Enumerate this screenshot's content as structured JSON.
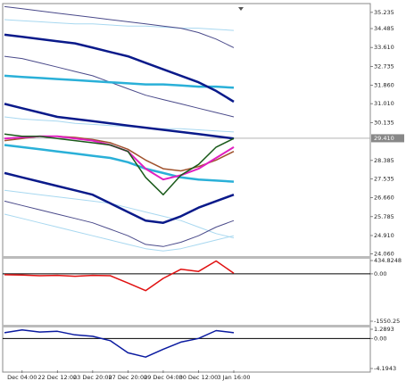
{
  "chart_data": [
    {
      "type": "line",
      "ylim": [
        24.0,
        35.6
      ],
      "yticks": [
        35.235,
        34.485,
        {
          "value": 33.61,
          "label": "33.610"
        },
        32.735,
        {
          "value": 31.86,
          "label": "31.860"
        },
        {
          "value": 31.01,
          "label": "31.010"
        },
        30.135,
        28.385,
        27.535,
        {
          "value": 26.66,
          "label": "26.660"
        },
        25.785,
        {
          "value": 24.91,
          "label": "24.910"
        },
        {
          "value": 24.06,
          "label": "24.060"
        }
      ],
      "price_line": {
        "value": 29.41,
        "label": "29.410"
      },
      "series": [
        {
          "color": "#a8d8f0",
          "width": 1,
          "values": [
            34.9,
            34.85,
            34.8,
            34.75,
            34.7,
            34.7,
            34.65,
            34.6,
            34.6,
            34.55,
            34.5,
            34.5,
            34.45,
            34.4
          ]
        },
        {
          "color": "#a8d8f0",
          "width": 1,
          "values": [
            30.4,
            30.3,
            30.25,
            30.2,
            30.1,
            30.05,
            30.0,
            29.95,
            29.9,
            29.85,
            29.85,
            29.8,
            29.75,
            29.7
          ]
        },
        {
          "color": "#a8d8f0",
          "width": 1,
          "values": [
            27.0,
            26.9,
            26.8,
            26.7,
            26.6,
            26.5,
            26.4,
            26.2,
            26.0,
            25.8,
            25.6,
            25.3,
            25.0,
            24.8
          ]
        },
        {
          "color": "#a8d8f0",
          "width": 1,
          "values": [
            25.9,
            25.7,
            25.5,
            25.3,
            25.1,
            24.9,
            24.7,
            24.5,
            24.3,
            24.2,
            24.3,
            24.5,
            24.7,
            24.9
          ]
        },
        {
          "color": "#4a4a8a",
          "width": 1,
          "values": [
            35.5,
            35.4,
            35.3,
            35.2,
            35.1,
            35.0,
            34.9,
            34.8,
            34.7,
            34.6,
            34.5,
            34.3,
            34.0,
            33.6
          ]
        },
        {
          "color": "#4a4a8a",
          "width": 1,
          "values": [
            33.2,
            33.1,
            32.9,
            32.7,
            32.5,
            32.3,
            32.0,
            31.7,
            31.4,
            31.2,
            31.0,
            30.8,
            30.6,
            30.4
          ]
        },
        {
          "color": "#4a4a8a",
          "width": 1,
          "values": [
            26.5,
            26.3,
            26.1,
            25.9,
            25.7,
            25.5,
            25.2,
            24.9,
            24.5,
            24.4,
            24.6,
            24.9,
            25.3,
            25.6
          ]
        },
        {
          "color": "#2ab0d8",
          "width": 2.5,
          "values": [
            32.3,
            32.25,
            32.2,
            32.15,
            32.1,
            32.05,
            32.0,
            31.95,
            31.9,
            31.9,
            31.85,
            31.8,
            31.8,
            31.75
          ]
        },
        {
          "color": "#2ab0d8",
          "width": 2.5,
          "values": [
            29.1,
            29.0,
            28.9,
            28.8,
            28.7,
            28.6,
            28.5,
            28.3,
            28.0,
            27.8,
            27.6,
            27.5,
            27.45,
            27.4
          ]
        },
        {
          "color": "#0a1a8a",
          "width": 2.5,
          "values": [
            34.2,
            34.1,
            34.0,
            33.9,
            33.8,
            33.6,
            33.4,
            33.2,
            32.9,
            32.6,
            32.3,
            32.0,
            31.6,
            31.1
          ]
        },
        {
          "color": "#0a1a8a",
          "width": 2.5,
          "values": [
            31.0,
            30.8,
            30.6,
            30.4,
            30.3,
            30.2,
            30.1,
            30.0,
            29.9,
            29.8,
            29.7,
            29.6,
            29.5,
            29.4
          ]
        },
        {
          "color": "#0a1a8a",
          "width": 2.5,
          "values": [
            27.8,
            27.6,
            27.4,
            27.2,
            27.0,
            26.8,
            26.4,
            26.0,
            25.6,
            25.5,
            25.8,
            26.2,
            26.5,
            26.8
          ]
        },
        {
          "color": "#a0522d",
          "width": 1.5,
          "values": [
            29.3,
            29.4,
            29.5,
            29.5,
            29.45,
            29.35,
            29.2,
            28.9,
            28.4,
            28.0,
            27.9,
            28.1,
            28.4,
            28.8
          ]
        },
        {
          "color": "#e020c0",
          "width": 2,
          "values": [
            29.4,
            29.45,
            29.5,
            29.5,
            29.4,
            29.3,
            29.1,
            28.8,
            28.0,
            27.5,
            27.7,
            28.0,
            28.5,
            29.0
          ]
        },
        {
          "color": "#1a5a1a",
          "width": 1.5,
          "values": [
            29.6,
            29.5,
            29.5,
            29.4,
            29.3,
            29.2,
            29.1,
            28.8,
            27.6,
            26.8,
            27.7,
            28.2,
            29.0,
            29.4
          ]
        }
      ]
    },
    {
      "type": "line",
      "ylim": [
        -1550.25,
        434.8248
      ],
      "yticks": [
        434.8248,
        {
          "value": 0,
          "label": "0.00"
        },
        -1550.25
      ],
      "baseline": 0,
      "series": [
        {
          "color": "#e01010",
          "width": 1.5,
          "values": [
            -30,
            -40,
            -60,
            -50,
            -80,
            -50,
            -60,
            -300,
            -550,
            -150,
            150,
            80,
            420,
            20
          ]
        }
      ]
    },
    {
      "type": "line",
      "ylim": [
        -4.1943,
        1.2893
      ],
      "yticks": [
        1.2893,
        {
          "value": 0,
          "label": "0.00"
        },
        -4.1943
      ],
      "baseline": 0,
      "categories": [
        null,
        "Dec 04:00",
        null,
        "22 Dec 12:00",
        null,
        "23 Dec 20:00",
        null,
        "27 Dec 20:00",
        null,
        "29 Dec 04:00",
        null,
        "30 Dec 12:00",
        null,
        "3 Jan 16:00"
      ],
      "series": [
        {
          "color": "#0a1aa0",
          "width": 1.5,
          "values": [
            0.8,
            1.2,
            0.9,
            1.0,
            0.5,
            0.3,
            -0.3,
            -2.0,
            -2.6,
            -1.5,
            -0.5,
            0.0,
            1.1,
            0.8
          ]
        }
      ]
    }
  ]
}
